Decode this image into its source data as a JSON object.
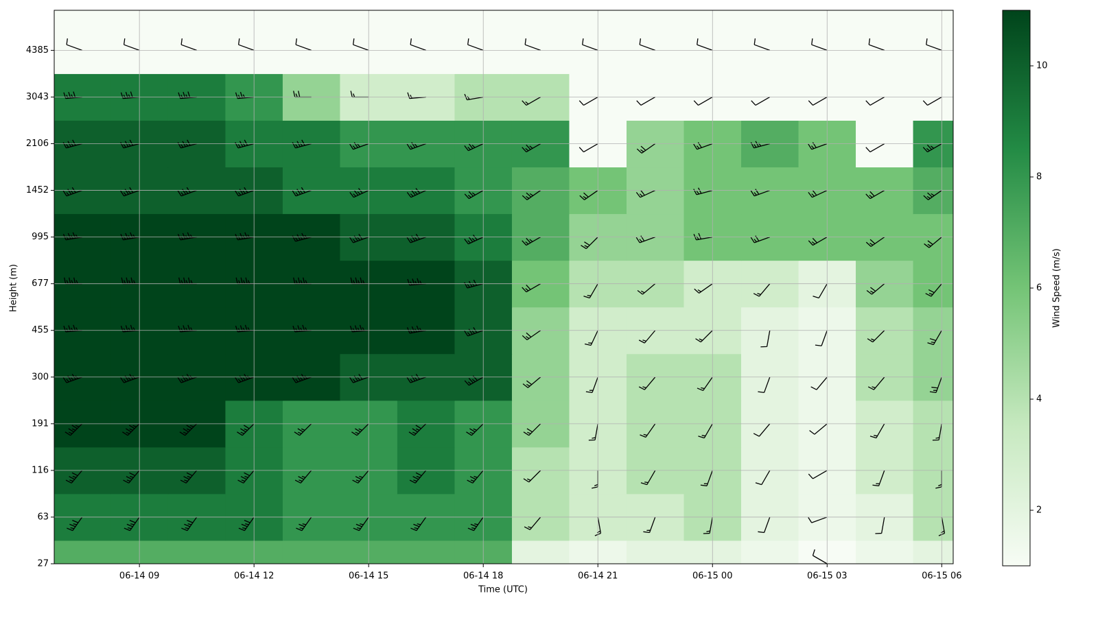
{
  "chart_data": {
    "type": "heatmap",
    "x_label": "Time (UTC)",
    "y_label": "Height (m)",
    "colorbar_label": "Wind Speed (m/s)",
    "xlim": [
      6.77,
      30.3
    ],
    "xticks": [
      {
        "value": 9,
        "label": "06-14 09"
      },
      {
        "value": 12,
        "label": "06-14 12"
      },
      {
        "value": 15,
        "label": "06-14 15"
      },
      {
        "value": 18,
        "label": "06-14 18"
      },
      {
        "value": 21,
        "label": "06-14 21"
      },
      {
        "value": 24,
        "label": "06-15 00"
      },
      {
        "value": 27,
        "label": "06-15 03"
      },
      {
        "value": 30,
        "label": "06-15 06"
      }
    ],
    "ylim": [
      27,
      6000
    ],
    "yticks": [
      27,
      63,
      116,
      191,
      300,
      455,
      677,
      995,
      1452,
      2106,
      3043,
      4385
    ],
    "grid": true,
    "x": [
      7.5,
      9,
      10.5,
      12,
      13.5,
      15,
      16.5,
      18,
      19.5,
      21,
      22.5,
      24,
      25.5,
      27,
      28.5,
      30
    ],
    "heights": [
      27,
      63,
      116,
      191,
      300,
      455,
      677,
      995,
      1452,
      2106,
      3043,
      4385
    ],
    "speed": [
      [
        7,
        7,
        7,
        7,
        7,
        7,
        7,
        7,
        2,
        1.5,
        2,
        2,
        1.5,
        1,
        1.5,
        2
      ],
      [
        9,
        9,
        9,
        9,
        8,
        8,
        8,
        8,
        4,
        3,
        3,
        4,
        2,
        1.5,
        2,
        4
      ],
      [
        10,
        10,
        10,
        9,
        8,
        8,
        9,
        8,
        4,
        3,
        4,
        4,
        2,
        1.5,
        3,
        4
      ],
      [
        11,
        11,
        11,
        9,
        8,
        8,
        9,
        8,
        5,
        3,
        4,
        4,
        2,
        1.5,
        3,
        4
      ],
      [
        11,
        11,
        11,
        11,
        11,
        10,
        10,
        10,
        5,
        3,
        4,
        4,
        2,
        1.5,
        4,
        5
      ],
      [
        11,
        11,
        11,
        11,
        11,
        11,
        11,
        10,
        5,
        3,
        3,
        3,
        2,
        1.5,
        4,
        5
      ],
      [
        11,
        11,
        11,
        11,
        11,
        11,
        11,
        10,
        6,
        4,
        4,
        3,
        3,
        2,
        5,
        6
      ],
      [
        11,
        11,
        11,
        11,
        11,
        10,
        10,
        9,
        7,
        5,
        5,
        6,
        6,
        6,
        6,
        6
      ],
      [
        10,
        10,
        10,
        10,
        9,
        9,
        9,
        8,
        7,
        6,
        5,
        6,
        6,
        6,
        6,
        7
      ],
      [
        10,
        10,
        10,
        9,
        9,
        8,
        8,
        8,
        8,
        1,
        5,
        6,
        7,
        6,
        1,
        8
      ],
      [
        9,
        9,
        9,
        8,
        5,
        3,
        3,
        4,
        4,
        1,
        1,
        1,
        1,
        1,
        1,
        1
      ],
      [
        1,
        1,
        1,
        1,
        1,
        1,
        1,
        1,
        1,
        1,
        1,
        1,
        1,
        1,
        1,
        1
      ]
    ],
    "direction": [
      [
        210,
        210,
        210,
        210,
        210,
        210,
        210,
        210,
        220,
        160,
        200,
        180,
        180,
        300,
        180,
        170
      ],
      [
        215,
        215,
        215,
        215,
        215,
        215,
        215,
        215,
        220,
        170,
        200,
        190,
        200,
        250,
        190,
        170
      ],
      [
        220,
        220,
        220,
        220,
        220,
        220,
        220,
        220,
        225,
        180,
        210,
        200,
        210,
        240,
        200,
        180
      ],
      [
        225,
        225,
        225,
        225,
        225,
        225,
        225,
        225,
        225,
        190,
        215,
        210,
        220,
        230,
        210,
        190
      ],
      [
        250,
        250,
        250,
        250,
        250,
        250,
        250,
        240,
        230,
        200,
        220,
        215,
        200,
        220,
        220,
        200
      ],
      [
        265,
        265,
        265,
        265,
        265,
        265,
        260,
        250,
        235,
        205,
        220,
        225,
        190,
        200,
        225,
        210
      ],
      [
        270,
        270,
        270,
        270,
        270,
        270,
        265,
        255,
        240,
        210,
        230,
        235,
        220,
        210,
        230,
        220
      ],
      [
        260,
        260,
        260,
        260,
        255,
        250,
        250,
        245,
        240,
        225,
        250,
        260,
        250,
        240,
        235,
        230
      ],
      [
        250,
        250,
        250,
        250,
        250,
        245,
        245,
        240,
        235,
        235,
        245,
        255,
        250,
        245,
        240,
        235
      ],
      [
        255,
        255,
        255,
        255,
        255,
        250,
        250,
        245,
        240,
        240,
        235,
        250,
        255,
        250,
        240,
        240
      ],
      [
        265,
        265,
        265,
        265,
        270,
        270,
        265,
        260,
        240,
        240,
        240,
        240,
        240,
        240,
        240,
        240
      ],
      [
        290,
        290,
        290,
        290,
        290,
        290,
        290,
        290,
        290,
        290,
        290,
        290,
        290,
        290,
        290,
        290
      ]
    ],
    "clim": [
      1,
      11
    ],
    "colorbar_ticks": [
      2,
      4,
      6,
      8,
      10
    ],
    "colormap": [
      "#f7fcf5",
      "#c7e9c0",
      "#74c476",
      "#238b45",
      "#00441b"
    ],
    "barb_color": "#000000"
  }
}
